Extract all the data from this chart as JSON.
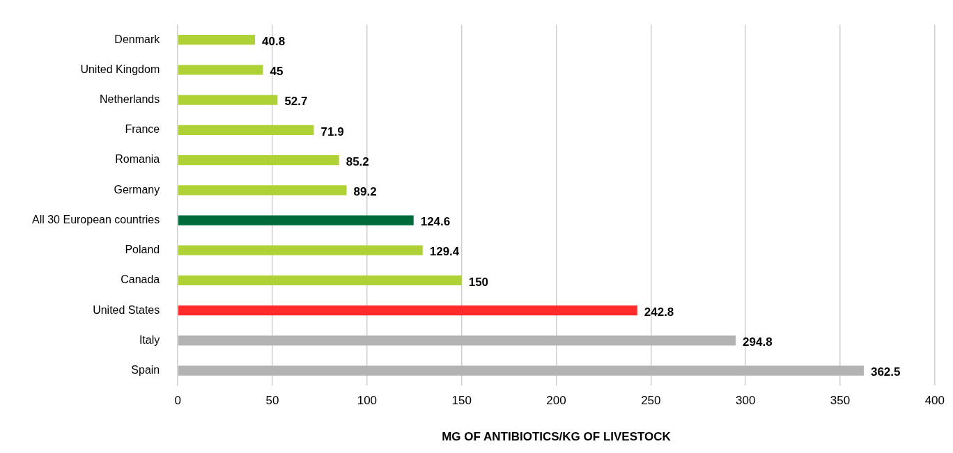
{
  "chart_data": {
    "type": "bar",
    "orientation": "horizontal",
    "xlabel": "MG OF ANTIBIOTICS/KG OF LIVESTOCK",
    "categories": [
      "Denmark",
      "United Kingdom",
      "Netherlands",
      "France",
      "Romania",
      "Germany",
      "All 30 European countries",
      "Poland",
      "Canada",
      "United States",
      "Italy",
      "Spain"
    ],
    "values": [
      40.8,
      45,
      52.7,
      71.9,
      85.2,
      89.2,
      124.6,
      129.4,
      150,
      242.8,
      294.8,
      362.5
    ],
    "colors": [
      "#aed136",
      "#aed136",
      "#aed136",
      "#aed136",
      "#aed136",
      "#aed136",
      "#006b3a",
      "#aed136",
      "#aed136",
      "#ff2a2a",
      "#b3b3b3",
      "#b3b3b3"
    ],
    "xlim": [
      0,
      400
    ],
    "xticks": [
      0,
      50,
      100,
      150,
      200,
      250,
      300,
      350,
      400
    ],
    "grid": "x",
    "data_labels": true
  }
}
